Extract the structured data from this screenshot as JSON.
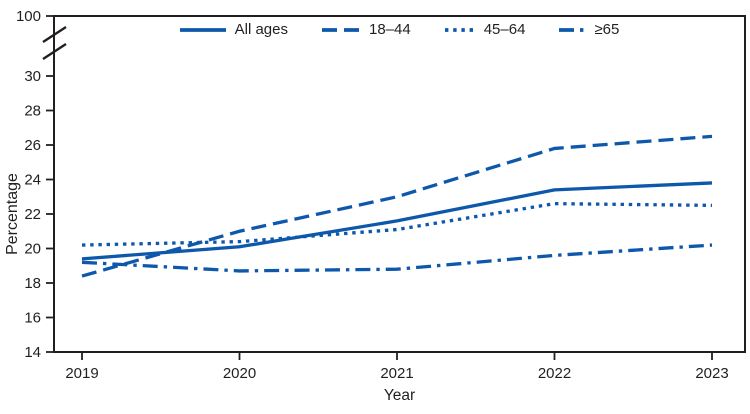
{
  "figure": {
    "y_axis_label": "Percentage",
    "x_axis_label": "Year"
  },
  "chart_data": {
    "type": "line",
    "x": [
      "2019",
      "2020",
      "2021",
      "2022",
      "2023"
    ],
    "series": [
      {
        "name": "All ages",
        "style": "solid",
        "values": [
          19.4,
          20.1,
          21.6,
          23.4,
          23.8
        ]
      },
      {
        "name": "18–44",
        "style": "dashed",
        "values": [
          18.4,
          21.0,
          23.0,
          25.8,
          26.5
        ]
      },
      {
        "name": "45–64",
        "style": "dotted",
        "values": [
          20.2,
          20.4,
          21.1,
          22.6,
          22.5
        ]
      },
      {
        "name": "≥65",
        "style": "dash-dot",
        "values": [
          19.2,
          18.7,
          18.8,
          19.6,
          20.2
        ]
      }
    ],
    "xlabel": "Year",
    "ylabel": "Percentage",
    "y_ticks_linear": [
      14,
      16,
      18,
      20,
      22,
      24,
      26,
      28,
      30
    ],
    "y_axis_break": {
      "upper_tick_label": "100",
      "between": [
        30,
        100
      ]
    },
    "ylim_linear": [
      14,
      30
    ],
    "grid": false,
    "legend_position": "top-center",
    "line_color": "#0e58ac",
    "axis_color": "#231f20"
  }
}
